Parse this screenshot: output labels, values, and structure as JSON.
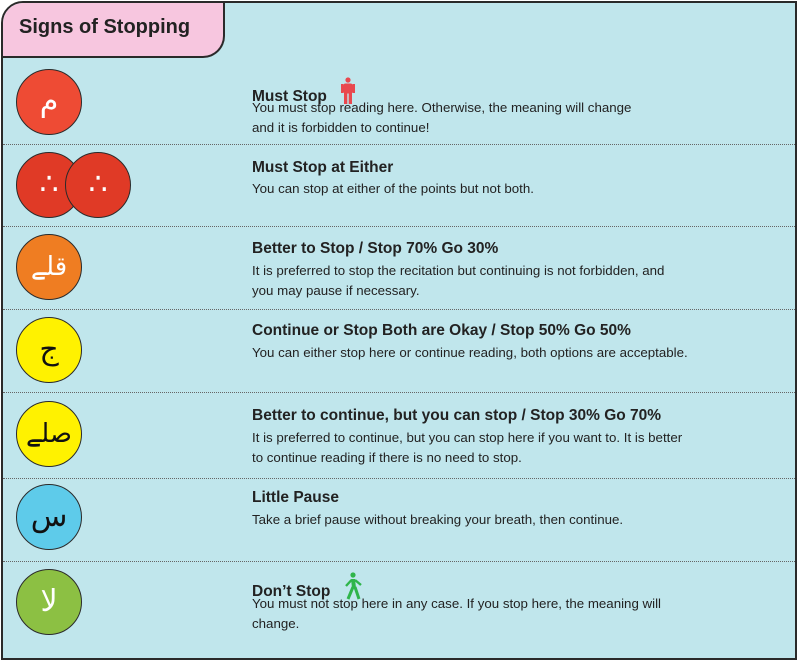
{
  "title": "Signs of Stopping",
  "colors": {
    "background": "#c0e6ec",
    "tab": "#f7c6df",
    "red": "#ee4b34",
    "dark_red": "#e03a26",
    "orange": "#ef7d22",
    "yellow": "#fff200",
    "blue": "#5ecbea",
    "green": "#8cc043"
  },
  "rows": [
    {
      "sign": "م",
      "title": "Must Stop",
      "icon": "standing-person-icon",
      "desc1": "You must stop reading here. Otherwise, the meaning will change",
      "desc2": "and it is forbidden to continue!"
    },
    {
      "sign": "∴",
      "title": "Must Stop at Either",
      "desc1": "You can stop at either of the points but not both."
    },
    {
      "sign": "قلے",
      "title": "Better to Stop / Stop 70% Go 30%",
      "desc1": "It is preferred to stop the recitation but continuing is not forbidden, and",
      "desc2": "you may pause if necessary."
    },
    {
      "sign": "ج",
      "title": "Continue or Stop Both are Okay / Stop 50% Go 50%",
      "desc1": "You can either stop here or continue reading, both options are acceptable."
    },
    {
      "sign": "صلے",
      "title": "Better to continue, but you can stop / Stop 30% Go 70%",
      "desc1": "It is preferred to continue, but you can stop here if you want to. It is better",
      "desc2": "to continue reading if there is no need to stop."
    },
    {
      "sign": "س",
      "title": "Little Pause",
      "desc1": "Take a brief pause without breaking your breath, then continue."
    },
    {
      "sign": "لا",
      "title": "Don’t Stop",
      "icon": "walking-person-icon",
      "desc1": "You must not stop here in any case. If you stop here, the meaning will",
      "desc2": "change."
    }
  ]
}
